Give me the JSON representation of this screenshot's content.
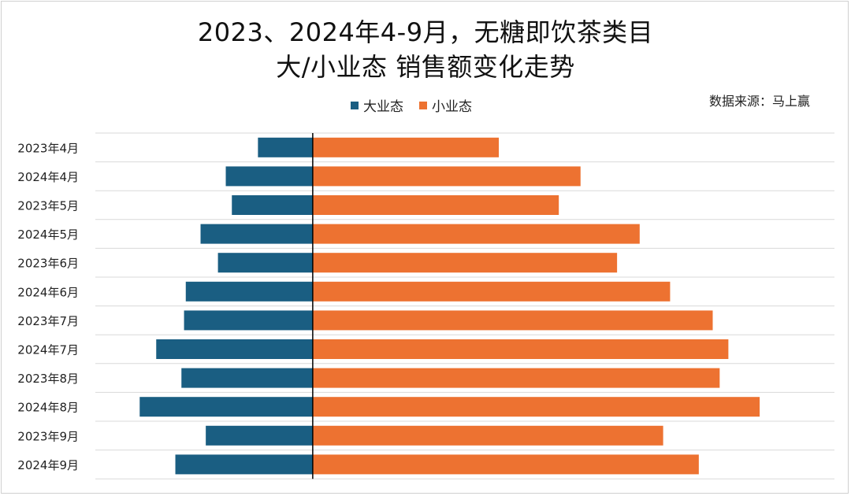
{
  "title": {
    "line1": "2023、2024年4-9月，无糖即饮茶类目",
    "line2": "大/小业态 销售额变化走势"
  },
  "source": "数据来源：马上赢",
  "colors": {
    "large": "#1a5e82",
    "small": "#ed7231",
    "grid": "#d9d9d9",
    "axis": "#000000"
  },
  "chart_data": {
    "type": "bar",
    "orientation": "horizontal-diverging",
    "categories": [
      "2023年4月",
      "2024年4月",
      "2023年5月",
      "2024年5月",
      "2023年6月",
      "2024年6月",
      "2023年7月",
      "2024年7月",
      "2023年8月",
      "2024年8月",
      "2023年9月",
      "2024年9月"
    ],
    "series": [
      {
        "name": "大业态",
        "values": [
          -63,
          -100,
          -93,
          -129,
          -109,
          -146,
          -148,
          -180,
          -151,
          -199,
          -123,
          -158
        ]
      },
      {
        "name": "小业态",
        "values": [
          214,
          308,
          283,
          376,
          350,
          411,
          460,
          478,
          468,
          514,
          403,
          444
        ]
      }
    ],
    "title": "2023、2024年4-9月，无糖即饮茶类目 大/小业态 销售额变化走势",
    "xlabel": "",
    "ylabel": "",
    "xlim": [
      -250,
      600
    ],
    "grid": true,
    "legend": "top-center"
  }
}
